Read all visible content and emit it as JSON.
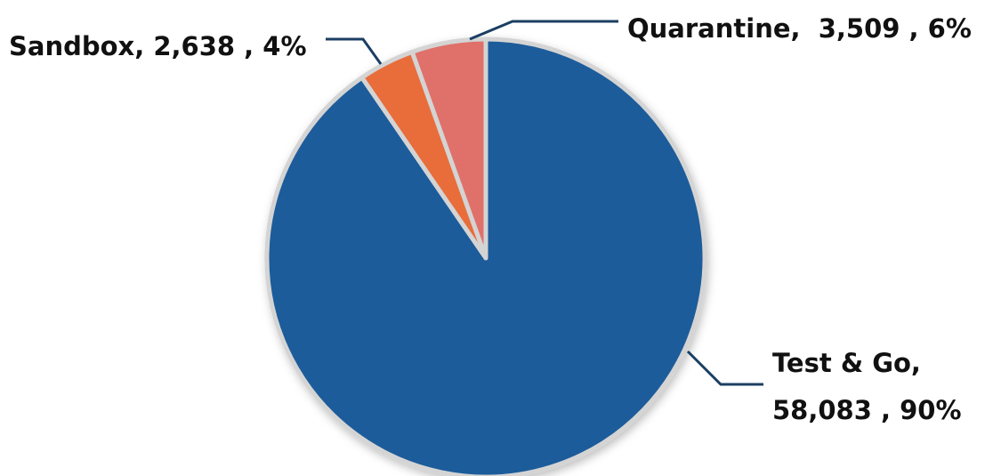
{
  "colors": {
    "test_go": "#1f5c9b",
    "sandbox": "#e96c3a",
    "quarantine": "#e0706a",
    "separator": "#d4d4d4",
    "leader": "#1b3f63"
  },
  "chart_data": {
    "type": "pie",
    "slices": [
      {
        "key": "test_go",
        "value": 58083,
        "percent": 90,
        "label_lines": [
          "Test & Go,",
          "58,083 , 90%"
        ]
      },
      {
        "key": "sandbox",
        "value": 2638,
        "percent": 4,
        "label_lines": [
          "Sandbox, 2,638 , 4%"
        ]
      },
      {
        "key": "quarantine",
        "value": 3509,
        "percent": 6,
        "label_lines": [
          "Quarantine,  3,509 , 6%"
        ]
      }
    ]
  }
}
